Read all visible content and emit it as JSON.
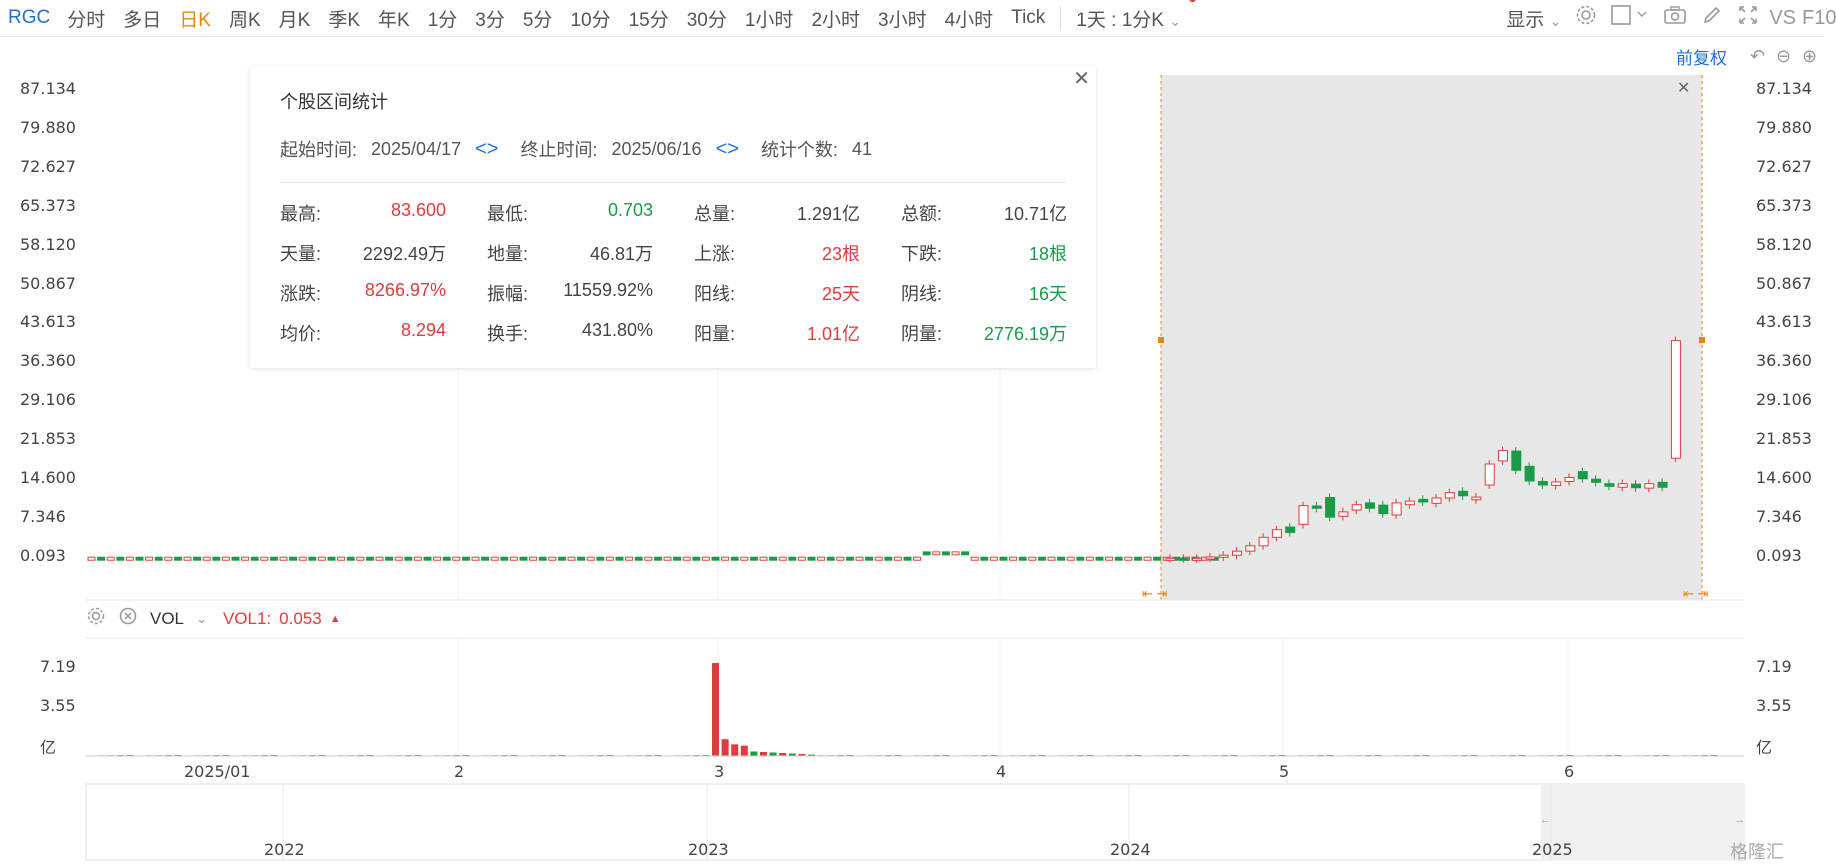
{
  "toolbar": {
    "ticker": "RGC",
    "periods": [
      "分时",
      "多日",
      "日K",
      "周K",
      "月K",
      "季K",
      "年K",
      "1分",
      "3分",
      "5分",
      "10分",
      "15分",
      "30分",
      "1小时",
      "2小时",
      "3小时",
      "4小时",
      "Tick"
    ],
    "active_period": "日K",
    "multi_period": "1天 : 1分K",
    "display_label": "显示",
    "vs_label": "VS",
    "f10_label": "F10"
  },
  "main_chart": {
    "adjust_label": "前复权",
    "price_ticks": [
      "87.134",
      "79.880",
      "72.627",
      "65.373",
      "58.120",
      "50.867",
      "43.613",
      "36.360",
      "29.106",
      "21.853",
      "14.600",
      "7.346",
      "0.093"
    ]
  },
  "stats_panel": {
    "title": "个股区间统计",
    "start_label": "起始时间:",
    "start_date": "2025/04/17",
    "end_label": "终止时间:",
    "end_date": "2025/06/16",
    "count_label": "统计个数:",
    "count": "41",
    "cells": [
      {
        "k": "最高:",
        "v": "83.600",
        "c": "red"
      },
      {
        "k": "最低:",
        "v": "0.703",
        "c": "green"
      },
      {
        "k": "总量:",
        "v": "1.291亿",
        "c": ""
      },
      {
        "k": "总额:",
        "v": "10.71亿",
        "c": ""
      },
      {
        "k": "天量:",
        "v": "2292.49万",
        "c": ""
      },
      {
        "k": "地量:",
        "v": "46.81万",
        "c": ""
      },
      {
        "k": "上涨:",
        "v": "23根",
        "c": "red"
      },
      {
        "k": "下跌:",
        "v": "18根",
        "c": "green"
      },
      {
        "k": "涨跌:",
        "v": "8266.97%",
        "c": "red"
      },
      {
        "k": "振幅:",
        "v": "11559.92%",
        "c": ""
      },
      {
        "k": "阳线:",
        "v": "25天",
        "c": "red"
      },
      {
        "k": "阴线:",
        "v": "16天",
        "c": "green"
      },
      {
        "k": "均价:",
        "v": "8.294",
        "c": "red"
      },
      {
        "k": "换手:",
        "v": "431.80%",
        "c": ""
      },
      {
        "k": "阳量:",
        "v": "1.01亿",
        "c": "red"
      },
      {
        "k": "阴量:",
        "v": "2776.19万",
        "c": "green"
      }
    ]
  },
  "volume": {
    "indicator": "VOL",
    "vol1_label": "VOL1:",
    "vol1_value": "0.053",
    "ticks": [
      "7.19",
      "3.55",
      "亿"
    ]
  },
  "time_axis": [
    "2025/01",
    "2",
    "3",
    "4",
    "5",
    "6"
  ],
  "navigator_axis": [
    "2022",
    "2023",
    "2024",
    "2025"
  ],
  "watermark": "格隆汇",
  "colors": {
    "up": "#e23b3b",
    "down": "#1a9b48",
    "accent": "#e8860c",
    "link": "#1e6fd9"
  }
}
